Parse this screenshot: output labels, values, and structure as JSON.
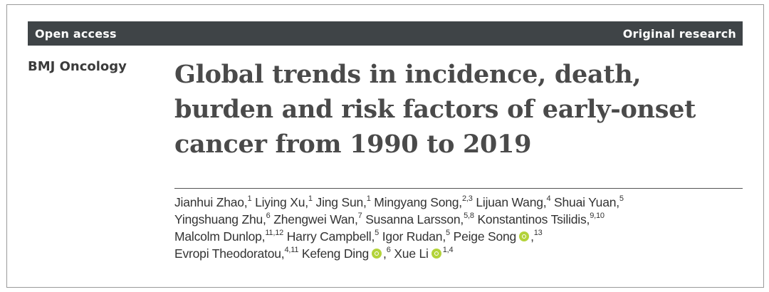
{
  "banner": {
    "access": "Open access",
    "type": "Original research"
  },
  "journal": "BMJ Oncology",
  "title": {
    "line1": "Global trends in incidence, death,",
    "line2": "burden and risk factors of early-onset",
    "line3": "cancer from 1990 to 2019"
  },
  "orcid_color": "#b3d33a",
  "authors": [
    {
      "name": "Jianhui Zhao,",
      "aff": "1"
    },
    {
      "name": "Liying Xu,",
      "aff": "1"
    },
    {
      "name": "Jing Sun,",
      "aff": "1"
    },
    {
      "name": "Mingyang Song,",
      "aff": "2,3"
    },
    {
      "name": "Lijuan Wang,",
      "aff": "4"
    },
    {
      "name": "Shuai Yuan,",
      "aff": "5"
    },
    {
      "name": "Yingshuang Zhu,",
      "aff": "6"
    },
    {
      "name": "Zhengwei Wan,",
      "aff": "7"
    },
    {
      "name": "Susanna Larsson,",
      "aff": "5,8"
    },
    {
      "name": "Konstantinos Tsilidis,",
      "aff": "9,10"
    },
    {
      "name": "Malcolm Dunlop,",
      "aff": "11,12"
    },
    {
      "name": "Harry Campbell,",
      "aff": "5"
    },
    {
      "name": "Igor Rudan,",
      "aff": "5"
    },
    {
      "name": "Peige Song",
      "sep": ",",
      "aff": "13"
    },
    {
      "name": "Evropi Theodoratou,",
      "aff": "4,11"
    },
    {
      "name": "Kefeng Ding",
      "sep": ",",
      "aff": "6"
    },
    {
      "name": "Xue Li",
      "aff": "1,4"
    }
  ]
}
